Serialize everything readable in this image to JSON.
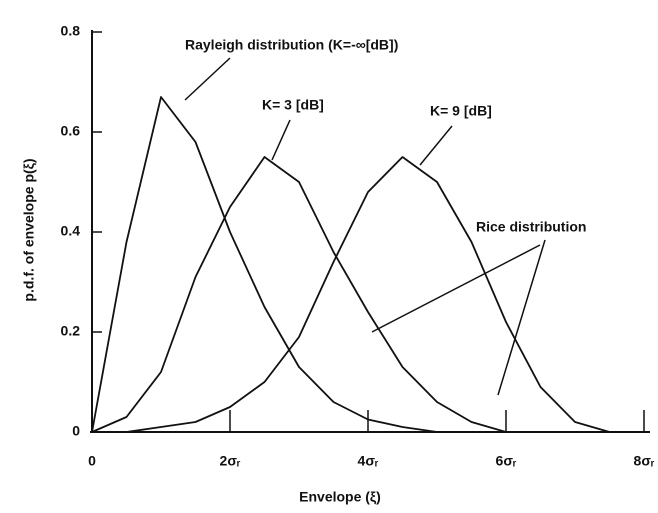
{
  "chart_data": {
    "type": "line",
    "x_label": "Envelope (ξ)",
    "y_label": "p.d.f. of envelope p(ξ)",
    "annotation": "Rice distribution",
    "x": [
      0,
      0.5,
      1,
      1.5,
      2,
      2.5,
      3,
      3.5,
      4,
      4.5,
      5,
      5.5,
      6,
      6.5,
      7,
      7.5,
      8
    ],
    "series": [
      {
        "name": "Rayleigh distribution (K=-∞[dB])",
        "color": "#111111",
        "values": [
          0,
          0.38,
          0.67,
          0.58,
          0.4,
          0.25,
          0.13,
          0.06,
          0.025,
          0.01,
          0,
          0,
          0,
          0,
          0,
          0,
          0
        ]
      },
      {
        "name": "K= 3 [dB]",
        "color": "#111111",
        "values": [
          0,
          0.03,
          0.12,
          0.31,
          0.45,
          0.55,
          0.5,
          0.36,
          0.24,
          0.13,
          0.06,
          0.02,
          0,
          0,
          0,
          0,
          0
        ]
      },
      {
        "name": "K= 9 [dB]",
        "color": "#111111",
        "values": [
          0,
          0,
          0.01,
          0.02,
          0.05,
          0.1,
          0.19,
          0.34,
          0.48,
          0.55,
          0.5,
          0.38,
          0.22,
          0.09,
          0.02,
          0,
          0
        ]
      }
    ],
    "xlim": [
      0,
      8
    ],
    "xticks": [
      {
        "value": 0,
        "label": "0"
      },
      {
        "value": 2,
        "label": "2σᵣ"
      },
      {
        "value": 4,
        "label": "4σᵣ"
      },
      {
        "value": 6,
        "label": "6σᵣ"
      },
      {
        "value": 8,
        "label": "8σᵣ"
      }
    ],
    "ylim": [
      0,
      0.8
    ],
    "yticks": [
      0,
      0.2,
      0.4,
      0.6,
      0.8
    ],
    "grid": false
  }
}
